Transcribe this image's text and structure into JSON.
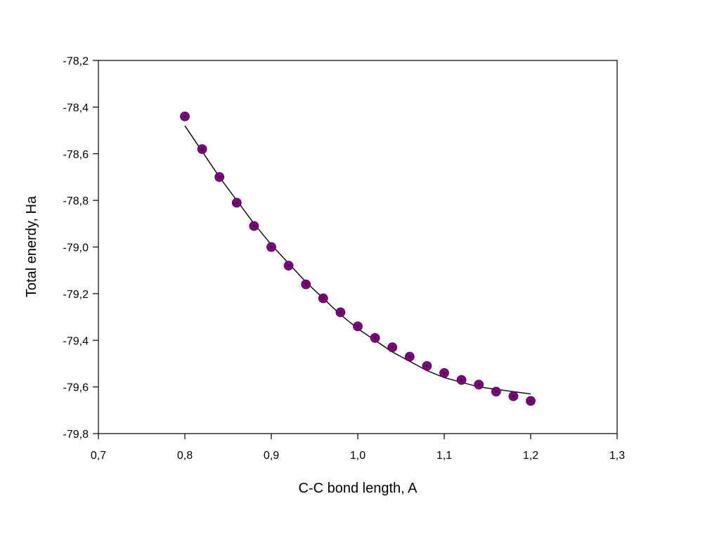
{
  "chart_data": {
    "type": "scatter",
    "title": "",
    "xlabel": "C-C bond length, A",
    "ylabel": "Total enerdy, Ha",
    "xlim": [
      0.7,
      1.3
    ],
    "ylim": [
      -79.8,
      -78.2
    ],
    "x_ticks": [
      "0,7",
      "0,8",
      "0,9",
      "1,0",
      "1,1",
      "1,2",
      "1,3"
    ],
    "y_ticks": [
      "-78,2",
      "-78,4",
      "-78,6",
      "-78,8",
      "-79,0",
      "-79,2",
      "-79,4",
      "-79,6",
      "-79,8"
    ],
    "x_tick_values": [
      0.7,
      0.8,
      0.9,
      1.0,
      1.1,
      1.2,
      1.3
    ],
    "y_tick_values": [
      -78.2,
      -78.4,
      -78.6,
      -78.8,
      -79.0,
      -79.2,
      -79.4,
      -79.6,
      -79.8
    ],
    "grid": false,
    "legend": "none",
    "series": [
      {
        "marker": "circle",
        "color": "#800080",
        "x": [
          0.8,
          0.82,
          0.84,
          0.86,
          0.88,
          0.9,
          0.92,
          0.94,
          0.96,
          0.98,
          1.0,
          1.02,
          1.04,
          1.06,
          1.08,
          1.1,
          1.12,
          1.14,
          1.16,
          1.18,
          1.2
        ],
        "y": [
          -78.44,
          -78.58,
          -78.7,
          -78.81,
          -78.91,
          -79.0,
          -79.08,
          -79.16,
          -79.22,
          -79.28,
          -79.34,
          -79.39,
          -79.43,
          -79.47,
          -79.51,
          -79.54,
          -79.57,
          -79.59,
          -79.62,
          -79.64,
          -79.66
        ]
      },
      {
        "type": "line",
        "color": "#000000",
        "x": [
          0.8,
          0.82,
          0.84,
          0.86,
          0.88,
          0.9,
          0.92,
          0.94,
          0.96,
          0.98,
          1.0,
          1.02,
          1.04,
          1.06,
          1.08,
          1.1,
          1.12,
          1.14,
          1.16,
          1.18,
          1.2
        ],
        "y": [
          -78.48,
          -78.59,
          -78.7,
          -78.8,
          -78.9,
          -78.99,
          -79.07,
          -79.15,
          -79.22,
          -79.29,
          -79.35,
          -79.4,
          -79.45,
          -79.49,
          -79.53,
          -79.56,
          -79.58,
          -79.6,
          -79.61,
          -79.62,
          -79.63
        ]
      }
    ]
  }
}
